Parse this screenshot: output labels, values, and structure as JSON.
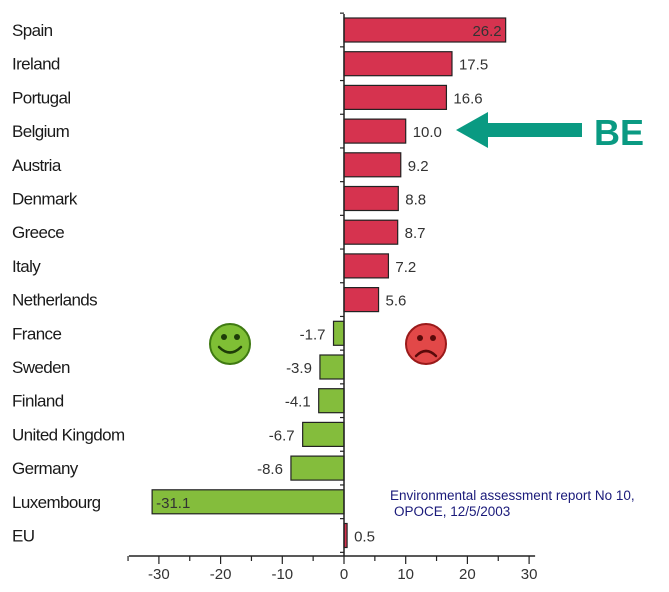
{
  "chart_data": {
    "type": "bar",
    "orientation": "horizontal",
    "categories": [
      "Spain",
      "Ireland",
      "Portugal",
      "Belgium",
      "Austria",
      "Denmark",
      "Greece",
      "Italy",
      "Netherlands",
      "France",
      "Sweden",
      "Finland",
      "United Kingdom",
      "Germany",
      "Luxembourg",
      "EU"
    ],
    "values": [
      26.2,
      17.5,
      16.6,
      10.0,
      9.2,
      8.8,
      8.7,
      7.2,
      5.6,
      -1.7,
      -3.9,
      -4.1,
      -6.7,
      -8.6,
      -31.1,
      0.5
    ],
    "value_labels": [
      "26.2",
      "17.5",
      "16.6",
      "10.0",
      "9.2",
      "8.8",
      "8.7",
      "7.2",
      "5.6",
      "-1.7",
      "-3.9",
      "-4.1",
      "-6.7",
      "-8.6",
      "-31.1",
      "0.5"
    ],
    "xlim": [
      -30,
      30
    ],
    "x_ticks": [
      -30,
      -20,
      -10,
      0,
      10,
      20,
      30
    ],
    "x_tick_labels": [
      "-30",
      "-20",
      "-10",
      "0",
      "10",
      "20",
      "30"
    ],
    "colors": {
      "positive": "#d6334f",
      "negative": "#84bd3c",
      "bar_outline": "#222222",
      "annotation": "#0a9a82"
    },
    "annotation": {
      "label": "BE",
      "target_category": "Belgium",
      "marker": "arrow-left-icon"
    },
    "icons": {
      "happy": "smiley-happy-icon",
      "sad": "smiley-sad-icon"
    },
    "grid": false,
    "legend": "none"
  },
  "source_note": {
    "line1": "Environmental assessment report No 10,",
    "line2": "OPOCE, 12/5/2003"
  }
}
